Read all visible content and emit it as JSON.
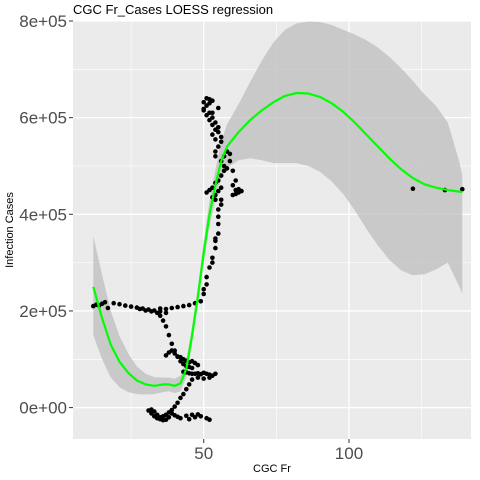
{
  "chart_data": {
    "type": "scatter",
    "title": "CGC Fr_Cases LOESS regression",
    "xlabel": "CGC Fr",
    "ylabel": "Infection Cases",
    "xlim": [
      5,
      142
    ],
    "ylim": [
      -65000,
      800000
    ],
    "x_ticks": [
      50,
      100
    ],
    "x_tick_labels": [
      "50",
      "100"
    ],
    "y_ticks": [
      0,
      200000,
      400000,
      600000,
      800000
    ],
    "y_tick_labels": [
      "0e+00",
      "2e+05",
      "4e+05",
      "6e+05",
      "8e+05"
    ],
    "grid": true,
    "colors": {
      "panel_background": "#ebebeb",
      "grid_line": "#ffffff",
      "points": "#000000",
      "smooth_line": "#00ff00",
      "confidence_band": "#bebebe"
    },
    "points": [
      [
        12,
        210000
      ],
      [
        13,
        213000
      ],
      [
        14,
        211000
      ],
      [
        15,
        215000
      ],
      [
        16,
        218000
      ],
      [
        17,
        206000
      ],
      [
        19,
        216000
      ],
      [
        21,
        214000
      ],
      [
        23,
        211000
      ],
      [
        25,
        209000
      ],
      [
        27,
        207000
      ],
      [
        29,
        205000
      ],
      [
        31,
        203000
      ],
      [
        33,
        201000
      ],
      [
        35,
        199000
      ],
      [
        37,
        196000
      ],
      [
        28,
        204000
      ],
      [
        30,
        201000
      ],
      [
        32,
        199000
      ],
      [
        34,
        196000
      ],
      [
        35,
        190000
      ],
      [
        36,
        180000
      ],
      [
        37,
        168000
      ],
      [
        38,
        150000
      ],
      [
        39,
        132000
      ],
      [
        40,
        118000
      ],
      [
        41,
        105000
      ],
      [
        42,
        96000
      ],
      [
        43,
        90000
      ],
      [
        44,
        86000
      ],
      [
        45,
        84000
      ],
      [
        46,
        82000
      ],
      [
        37,
        108000
      ],
      [
        38,
        114000
      ],
      [
        39,
        118000
      ],
      [
        40,
        112000
      ],
      [
        41,
        106000
      ],
      [
        42,
        104000
      ],
      [
        43,
        100000
      ],
      [
        44,
        97000
      ],
      [
        45,
        94000
      ],
      [
        46,
        96000
      ],
      [
        47,
        92000
      ],
      [
        48,
        88000
      ],
      [
        43,
        74000
      ],
      [
        44,
        73000
      ],
      [
        45,
        71000
      ],
      [
        46,
        70000
      ],
      [
        47,
        70000
      ],
      [
        48,
        71000
      ],
      [
        49,
        69000
      ],
      [
        50,
        72000
      ],
      [
        51,
        70000
      ],
      [
        52,
        68000
      ],
      [
        53,
        66000
      ],
      [
        54,
        70000
      ],
      [
        48,
        62000
      ],
      [
        50,
        60000
      ],
      [
        52,
        62000
      ],
      [
        46,
        58000
      ],
      [
        45,
        48000
      ],
      [
        44,
        38000
      ],
      [
        43,
        28000
      ],
      [
        42,
        20000
      ],
      [
        41,
        10000
      ],
      [
        40,
        2000
      ],
      [
        39,
        -5000
      ],
      [
        38,
        -10000
      ],
      [
        37,
        -15000
      ],
      [
        36,
        -18000
      ],
      [
        35,
        -20000
      ],
      [
        34,
        -15000
      ],
      [
        33,
        -8000
      ],
      [
        32,
        -4000
      ],
      [
        31,
        -6000
      ],
      [
        32,
        -12000
      ],
      [
        33,
        -18000
      ],
      [
        34,
        -22000
      ],
      [
        35,
        -24000
      ],
      [
        36,
        -26000
      ],
      [
        37,
        -25000
      ],
      [
        38,
        -20000
      ],
      [
        42,
        -22000
      ],
      [
        45,
        -24000
      ],
      [
        47,
        -20000
      ],
      [
        49,
        -18000
      ],
      [
        51,
        -22000
      ],
      [
        52,
        -25000
      ],
      [
        39,
        -12000
      ],
      [
        40,
        -16000
      ],
      [
        41,
        -19000
      ],
      [
        44,
        -17000
      ],
      [
        46,
        -15000
      ],
      [
        48,
        -14000
      ],
      [
        35,
        205000
      ],
      [
        37,
        204000
      ],
      [
        39,
        206000
      ],
      [
        41,
        208000
      ],
      [
        43,
        210000
      ],
      [
        45,
        212000
      ],
      [
        47,
        216000
      ],
      [
        49,
        220000
      ],
      [
        50,
        235000
      ],
      [
        51,
        255000
      ],
      [
        50,
        245000
      ],
      [
        51,
        270000
      ],
      [
        52,
        290000
      ],
      [
        53,
        310000
      ],
      [
        54,
        330000
      ],
      [
        54,
        345000
      ],
      [
        55,
        360000
      ],
      [
        55,
        380000
      ],
      [
        55,
        395000
      ],
      [
        55,
        410000
      ],
      [
        56,
        420000
      ],
      [
        56,
        430000
      ],
      [
        54,
        350000
      ],
      [
        53,
        300000
      ],
      [
        51,
        445000
      ],
      [
        52,
        450000
      ],
      [
        53,
        455000
      ],
      [
        54,
        465000
      ],
      [
        55,
        470000
      ],
      [
        56,
        480000
      ],
      [
        57,
        490000
      ],
      [
        58,
        495000
      ],
      [
        57,
        500000
      ],
      [
        56,
        510000
      ],
      [
        57,
        520000
      ],
      [
        58,
        530000
      ],
      [
        59,
        525000
      ],
      [
        59,
        510000
      ],
      [
        60,
        490000
      ],
      [
        61,
        470000
      ],
      [
        60,
        460000
      ],
      [
        61,
        450000
      ],
      [
        62,
        445000
      ],
      [
        63,
        448000
      ],
      [
        62,
        452000
      ],
      [
        61,
        442000
      ],
      [
        60,
        440000
      ],
      [
        54,
        440000
      ],
      [
        55,
        448000
      ],
      [
        56,
        455000
      ],
      [
        53,
        435000
      ],
      [
        54,
        430000
      ],
      [
        54,
        555000
      ],
      [
        53,
        565000
      ],
      [
        54,
        575000
      ],
      [
        53,
        585000
      ],
      [
        52,
        595000
      ],
      [
        51,
        605000
      ],
      [
        50,
        615000
      ],
      [
        51,
        625000
      ],
      [
        52,
        630000
      ],
      [
        53,
        635000
      ],
      [
        52,
        638000
      ],
      [
        51,
        640000
      ],
      [
        50,
        632000
      ],
      [
        50,
        618000
      ],
      [
        52,
        610000
      ],
      [
        53,
        600000
      ],
      [
        54,
        590000
      ],
      [
        55,
        580000
      ],
      [
        55,
        570000
      ],
      [
        56,
        560000
      ],
      [
        56,
        550000
      ],
      [
        55,
        540000
      ],
      [
        54,
        530000
      ],
      [
        54,
        520000
      ],
      [
        53,
        610000
      ],
      [
        55,
        620000
      ],
      [
        122,
        453000
      ],
      [
        133,
        450000
      ],
      [
        139,
        452000
      ]
    ],
    "loess_fit": [
      [
        12,
        250000
      ],
      [
        15,
        185000
      ],
      [
        18,
        130000
      ],
      [
        21,
        95000
      ],
      [
        24,
        72000
      ],
      [
        27,
        56000
      ],
      [
        30,
        48000
      ],
      [
        33,
        45000
      ],
      [
        36,
        48000
      ],
      [
        38,
        48000
      ],
      [
        40,
        45000
      ],
      [
        42,
        50000
      ],
      [
        44,
        80000
      ],
      [
        46,
        150000
      ],
      [
        48,
        230000
      ],
      [
        50,
        320000
      ],
      [
        52,
        400000
      ],
      [
        54,
        460000
      ],
      [
        56,
        510000
      ],
      [
        58,
        540000
      ],
      [
        62,
        570000
      ],
      [
        66,
        595000
      ],
      [
        70,
        615000
      ],
      [
        74,
        632000
      ],
      [
        78,
        645000
      ],
      [
        82,
        651000
      ],
      [
        86,
        650000
      ],
      [
        90,
        643000
      ],
      [
        94,
        630000
      ],
      [
        98,
        612000
      ],
      [
        102,
        590000
      ],
      [
        106,
        565000
      ],
      [
        110,
        540000
      ],
      [
        114,
        515000
      ],
      [
        118,
        493000
      ],
      [
        122,
        475000
      ],
      [
        126,
        462000
      ],
      [
        130,
        455000
      ],
      [
        134,
        450000
      ],
      [
        138,
        447000
      ],
      [
        139,
        446000
      ]
    ],
    "loess_band": [
      [
        12,
        355000,
        150000
      ],
      [
        15,
        275000,
        100000
      ],
      [
        18,
        200000,
        62000
      ],
      [
        21,
        148000,
        42000
      ],
      [
        24,
        112000,
        32000
      ],
      [
        27,
        85000,
        28000
      ],
      [
        30,
        70000,
        27000
      ],
      [
        33,
        63000,
        28000
      ],
      [
        36,
        62000,
        32000
      ],
      [
        38,
        62000,
        34000
      ],
      [
        40,
        60000,
        30000
      ],
      [
        42,
        66000,
        34000
      ],
      [
        44,
        98000,
        62000
      ],
      [
        46,
        168000,
        132000
      ],
      [
        48,
        250000,
        212000
      ],
      [
        50,
        344000,
        300000
      ],
      [
        52,
        428000,
        375000
      ],
      [
        54,
        492000,
        430000
      ],
      [
        56,
        550000,
        475000
      ],
      [
        58,
        586000,
        496000
      ],
      [
        62,
        628000,
        512000
      ],
      [
        66,
        674000,
        516000
      ],
      [
        70,
        718000,
        512000
      ],
      [
        74,
        756000,
        506000
      ],
      [
        78,
        782000,
        506000
      ],
      [
        82,
        795000,
        506000
      ],
      [
        86,
        799000,
        500000
      ],
      [
        90,
        798000,
        488000
      ],
      [
        94,
        792000,
        468000
      ],
      [
        98,
        782000,
        442000
      ],
      [
        102,
        772000,
        408000
      ],
      [
        106,
        760000,
        370000
      ],
      [
        110,
        745000,
        335000
      ],
      [
        114,
        725000,
        305000
      ],
      [
        118,
        702000,
        284000
      ],
      [
        122,
        676000,
        274000
      ],
      [
        126,
        648000,
        276000
      ],
      [
        130,
        624000,
        286000
      ],
      [
        134,
        590000,
        300000
      ],
      [
        138,
        508000,
        250000
      ],
      [
        139,
        480000,
        235000
      ]
    ]
  }
}
